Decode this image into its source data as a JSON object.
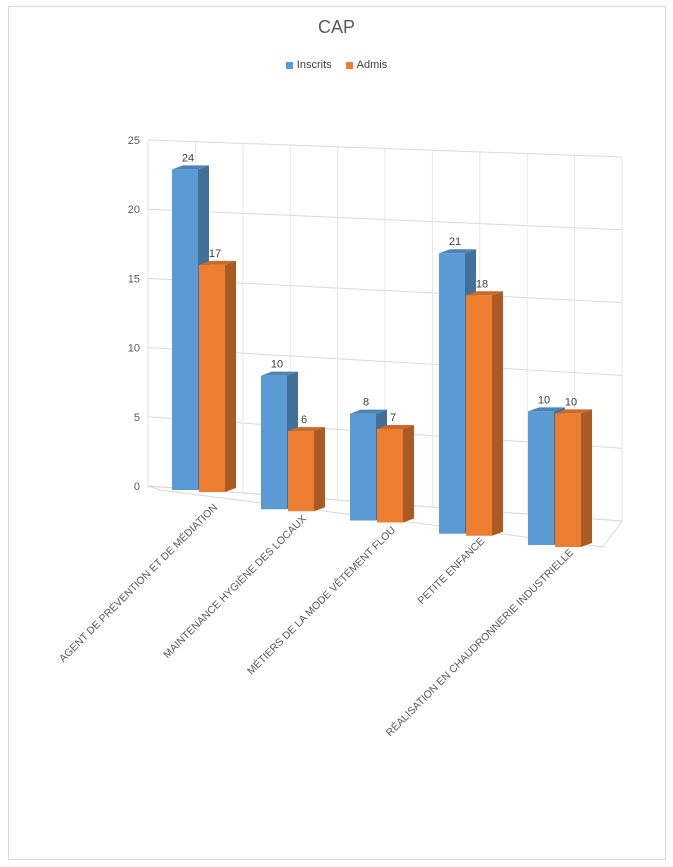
{
  "chart_data": {
    "type": "bar",
    "title": "CAP",
    "categories": [
      "AGENT DE PRÉVENTION ET DE MÉDIATION",
      "MAINTENANCE HYGIÈNE DES LOCAUX",
      "MÉTIERS DE LA MODE VÊTEMENT  FLOU",
      "PETITE ENFANCE",
      "RÉALISATION EN CHAUDRONNERIE INDUSTRIELLE"
    ],
    "series": [
      {
        "name": "Inscrits",
        "values": [
          24,
          10,
          8,
          21,
          10
        ],
        "color": "#5b9bd5"
      },
      {
        "name": "Admis",
        "values": [
          17,
          6,
          7,
          18,
          10
        ],
        "color": "#ed7d31"
      }
    ],
    "y_ticks": [
      "0",
      "5",
      "10",
      "15",
      "20",
      "25"
    ],
    "ylim": [
      0,
      25
    ],
    "grid": true,
    "legend_position": "top",
    "style": "3d-clustered-column"
  }
}
